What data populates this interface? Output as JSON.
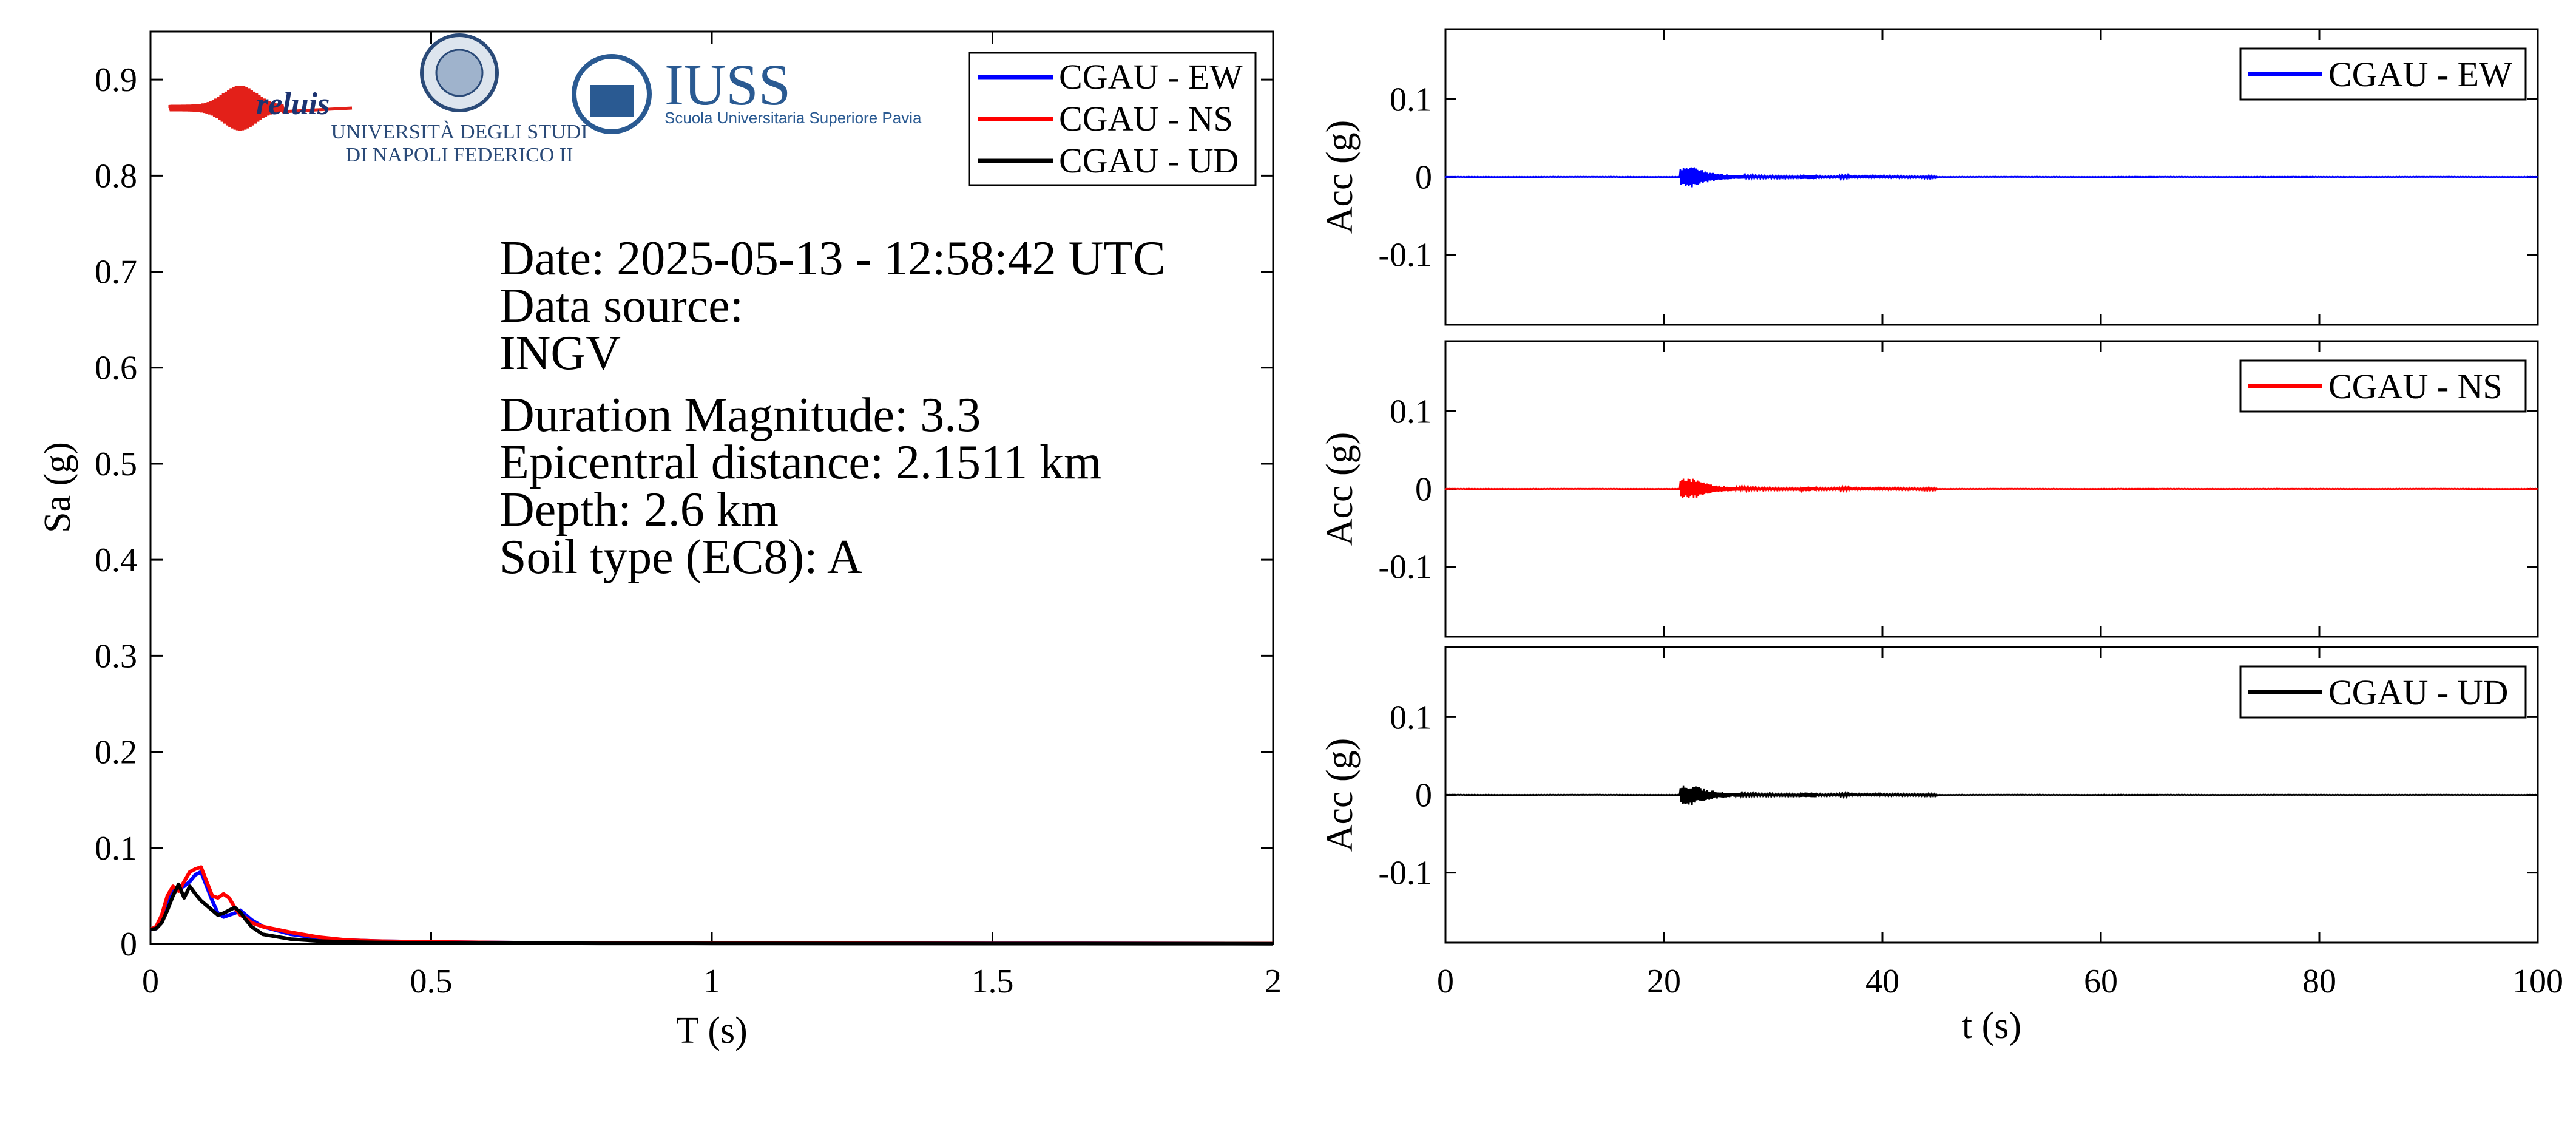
{
  "logos": {
    "reluis": "reluis",
    "unina_line1": "UNIVERSITÀ DEGLI STUDI",
    "unina_line2": "DI NAPOLI FEDERICO II",
    "iuss_name": "IUSS",
    "iuss_sub": "Scuola Universitaria Superiore Pavia"
  },
  "event_info": {
    "date": "Date: 2025-05-13 - 12:58:42 UTC",
    "source_label": "Data source:",
    "source": "INGV",
    "magnitude": "Duration Magnitude: 3.3",
    "distance": "Epicentral distance: 2.1511 km",
    "depth": "Depth: 2.6 km",
    "soil": "Soil type (EC8): A"
  },
  "colors": {
    "EW": "#0000ff",
    "NS": "#ff0000",
    "UD": "#000000"
  },
  "chart_data": [
    {
      "type": "line",
      "xlabel": "T (s)",
      "ylabel": "Sa (g)",
      "xlim": [
        0,
        2
      ],
      "ylim": [
        0,
        0.95
      ],
      "xticks": [
        0,
        0.5,
        1,
        1.5,
        2
      ],
      "xtick_labels": [
        "0",
        "0.5",
        "1",
        "1.5",
        "2"
      ],
      "yticks": [
        0,
        0.1,
        0.2,
        0.3,
        0.4,
        0.5,
        0.6,
        0.7,
        0.8,
        0.9
      ],
      "ytick_labels": [
        "0",
        "0.1",
        "0.2",
        "0.3",
        "0.4",
        "0.5",
        "0.6",
        "0.7",
        "0.8",
        "0.9"
      ],
      "grid": false,
      "legend": "top-right",
      "series": [
        {
          "name": "CGAU - EW",
          "color": "#0000ff",
          "x": [
            0,
            0.01,
            0.02,
            0.03,
            0.04,
            0.05,
            0.06,
            0.07,
            0.08,
            0.09,
            0.1,
            0.11,
            0.12,
            0.13,
            0.14,
            0.15,
            0.16,
            0.17,
            0.18,
            0.2,
            0.25,
            0.3,
            0.35,
            0.4,
            0.5,
            0.6,
            0.7,
            0.8,
            1.0,
            1.5,
            2.0
          ],
          "y": [
            0.015,
            0.016,
            0.025,
            0.045,
            0.055,
            0.058,
            0.06,
            0.065,
            0.072,
            0.075,
            0.06,
            0.045,
            0.032,
            0.028,
            0.03,
            0.032,
            0.035,
            0.03,
            0.025,
            0.018,
            0.01,
            0.006,
            0.004,
            0.003,
            0.002,
            0.0015,
            0.001,
            0.001,
            0.0008,
            0.0005,
            0.0003
          ]
        },
        {
          "name": "CGAU - NS",
          "color": "#ff0000",
          "x": [
            0,
            0.01,
            0.02,
            0.03,
            0.04,
            0.05,
            0.06,
            0.07,
            0.08,
            0.09,
            0.1,
            0.11,
            0.12,
            0.13,
            0.14,
            0.15,
            0.16,
            0.17,
            0.18,
            0.2,
            0.25,
            0.3,
            0.35,
            0.4,
            0.5,
            0.6,
            0.7,
            0.8,
            1.0,
            1.5,
            2.0
          ],
          "y": [
            0.015,
            0.018,
            0.03,
            0.05,
            0.06,
            0.055,
            0.065,
            0.075,
            0.078,
            0.08,
            0.065,
            0.05,
            0.048,
            0.052,
            0.048,
            0.038,
            0.03,
            0.027,
            0.022,
            0.018,
            0.012,
            0.007,
            0.004,
            0.003,
            0.002,
            0.0015,
            0.001,
            0.001,
            0.0008,
            0.0005,
            0.0003
          ]
        },
        {
          "name": "CGAU - UD",
          "color": "#000000",
          "x": [
            0,
            0.01,
            0.02,
            0.03,
            0.04,
            0.05,
            0.06,
            0.07,
            0.08,
            0.09,
            0.1,
            0.11,
            0.12,
            0.13,
            0.14,
            0.15,
            0.16,
            0.17,
            0.18,
            0.2,
            0.25,
            0.3,
            0.35,
            0.4,
            0.5,
            0.6,
            0.7,
            0.8,
            1.0,
            1.5,
            2.0
          ],
          "y": [
            0.015,
            0.016,
            0.022,
            0.035,
            0.05,
            0.062,
            0.048,
            0.06,
            0.052,
            0.045,
            0.04,
            0.035,
            0.03,
            0.032,
            0.035,
            0.038,
            0.033,
            0.025,
            0.018,
            0.01,
            0.005,
            0.003,
            0.002,
            0.0015,
            0.001,
            0.001,
            0.0008,
            0.0006,
            0.0005,
            0.0003,
            0.0002
          ]
        }
      ]
    },
    {
      "type": "line",
      "xlabel": "",
      "ylabel": "Acc (g)",
      "xlim": [
        0,
        100
      ],
      "ylim": [
        -0.19,
        0.19
      ],
      "yticks": [
        -0.1,
        0,
        0.1
      ],
      "ytick_labels": [
        "-0.1",
        "0",
        "0.1"
      ],
      "grid": false,
      "legend": "top-right",
      "series": [
        {
          "name": "CGAU - EW",
          "color": "#0000ff",
          "peak_g": 0.012,
          "strong_motion_s": [
            21.5,
            25
          ],
          "coda_end_s": 45
        }
      ]
    },
    {
      "type": "line",
      "xlabel": "",
      "ylabel": "Acc (g)",
      "xlim": [
        0,
        100
      ],
      "ylim": [
        -0.19,
        0.19
      ],
      "yticks": [
        -0.1,
        0,
        0.1
      ],
      "ytick_labels": [
        "-0.1",
        "0",
        "0.1"
      ],
      "grid": false,
      "legend": "top-right",
      "series": [
        {
          "name": "CGAU - NS",
          "color": "#ff0000",
          "peak_g": 0.012,
          "strong_motion_s": [
            21.5,
            25
          ],
          "coda_end_s": 45
        }
      ]
    },
    {
      "type": "line",
      "xlabel": "t (s)",
      "ylabel": "Acc (g)",
      "xlim": [
        0,
        100
      ],
      "ylim": [
        -0.19,
        0.19
      ],
      "xticks": [
        0,
        20,
        40,
        60,
        80,
        100
      ],
      "xtick_labels": [
        "0",
        "20",
        "40",
        "60",
        "80",
        "100"
      ],
      "yticks": [
        -0.1,
        0,
        0.1
      ],
      "ytick_labels": [
        "-0.1",
        "0",
        "0.1"
      ],
      "grid": false,
      "legend": "top-right",
      "series": [
        {
          "name": "CGAU - UD",
          "color": "#000000",
          "peak_g": 0.012,
          "strong_motion_s": [
            21.5,
            25
          ],
          "coda_end_s": 45
        }
      ]
    }
  ]
}
